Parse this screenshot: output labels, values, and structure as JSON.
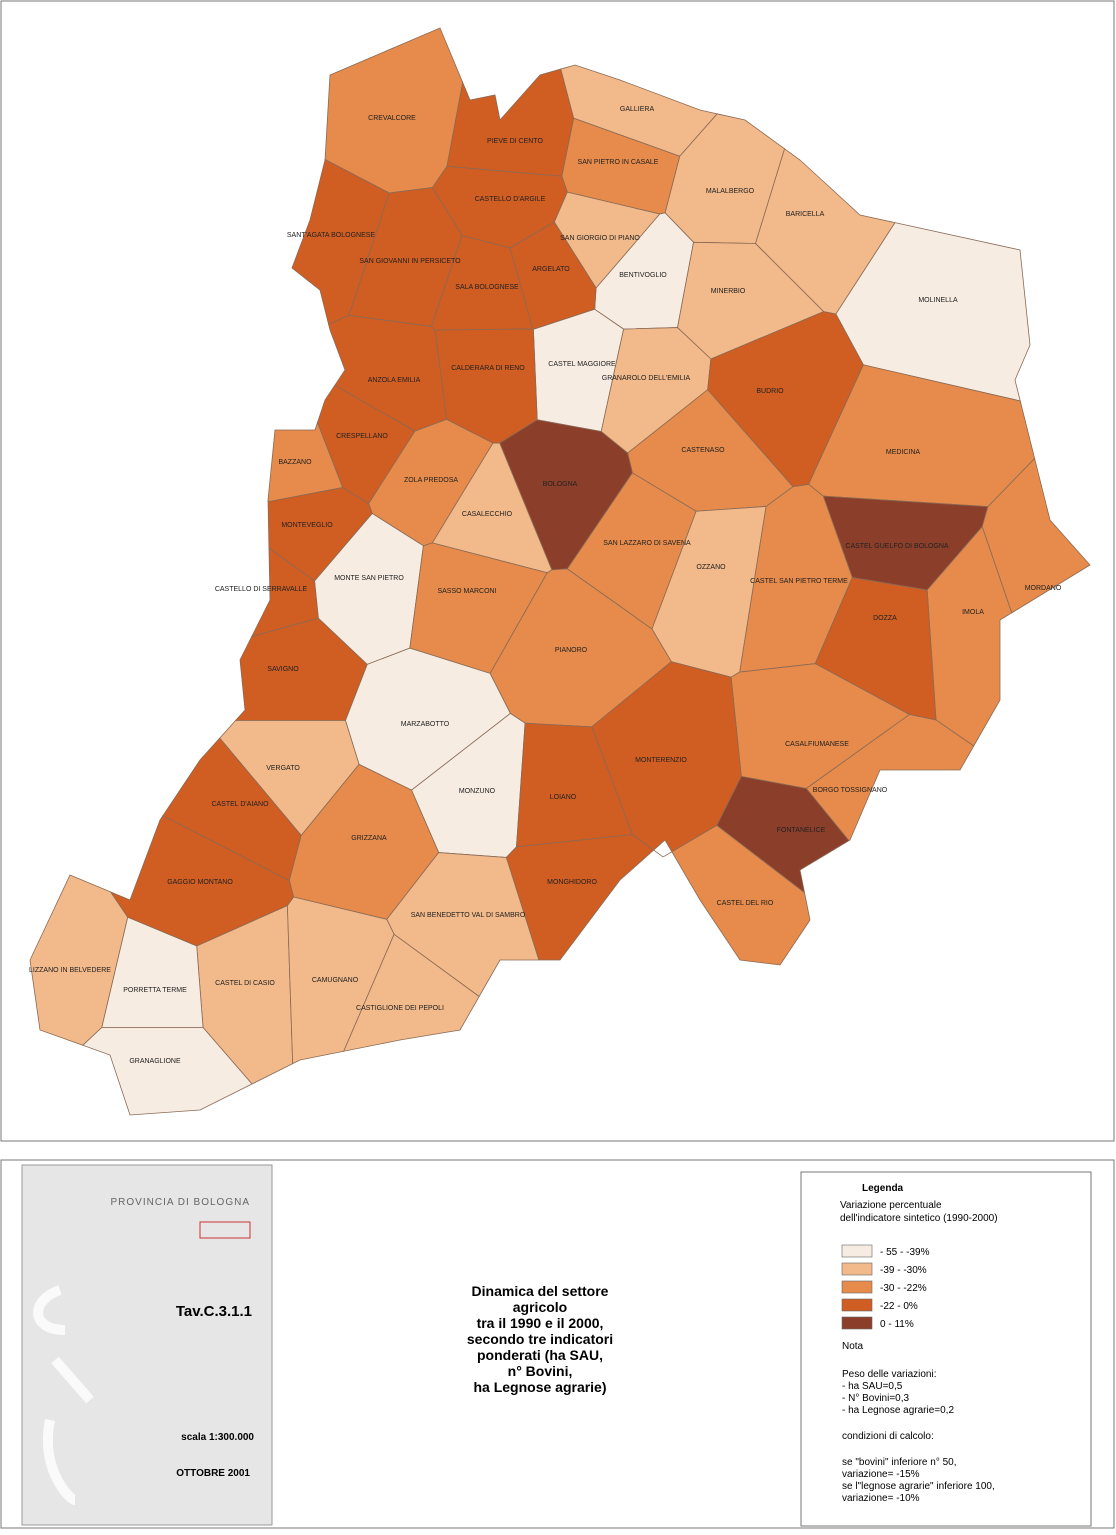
{
  "map": {
    "municipalities": [
      {
        "name": "CREVALCORE",
        "class": 2
      },
      {
        "name": "PIEVE DI CENTO",
        "class": 3
      },
      {
        "name": "GALLIERA",
        "class": 1
      },
      {
        "name": "SAN PIETRO IN CASALE",
        "class": 2
      },
      {
        "name": "MALALBERGO",
        "class": 1
      },
      {
        "name": "BARICELLA",
        "class": 1
      },
      {
        "name": "CASTELLO D'ARGILE",
        "class": 3
      },
      {
        "name": "SANT'AGATA BOLOGNESE",
        "class": 3
      },
      {
        "name": "SAN GIORGIO DI PIANO",
        "class": 1
      },
      {
        "name": "SAN GIOVANNI IN PERSICETO",
        "class": 3
      },
      {
        "name": "BENTIVOGLIO",
        "class": 0
      },
      {
        "name": "ARGELATO",
        "class": 3
      },
      {
        "name": "MOLINELLA",
        "class": 0
      },
      {
        "name": "SALA BOLOGNESE",
        "class": 3
      },
      {
        "name": "MINERBIO",
        "class": 1
      },
      {
        "name": "CASTEL MAGGIORE",
        "class": 0
      },
      {
        "name": "CALDERARA DI RENO",
        "class": 3
      },
      {
        "name": "ANZOLA EMILIA",
        "class": 3
      },
      {
        "name": "GRANAROLO DELL'EMILIA",
        "class": 1
      },
      {
        "name": "BUDRIO",
        "class": 3
      },
      {
        "name": "CRESPELLANO",
        "class": 3
      },
      {
        "name": "BAZZANO",
        "class": 2
      },
      {
        "name": "CASTENASO",
        "class": 2
      },
      {
        "name": "MEDICINA",
        "class": 2
      },
      {
        "name": "ZOLA PREDOSA",
        "class": 2
      },
      {
        "name": "BOLOGNA",
        "class": 4
      },
      {
        "name": "CASALECCHIO",
        "class": 1
      },
      {
        "name": "MONTEVEGLIO",
        "class": 3
      },
      {
        "name": "CASTEL GUELFO DI BOLOGNA",
        "class": 4
      },
      {
        "name": "SAN LAZZARO DI SAVENA",
        "class": 2
      },
      {
        "name": "OZZANO",
        "class": 1
      },
      {
        "name": "MONTE SAN PIETRO",
        "class": 0
      },
      {
        "name": "CASTEL SAN PIETRO TERME",
        "class": 2
      },
      {
        "name": "CASTELLO DI SERRAVALLE",
        "class": 3
      },
      {
        "name": "SASSO MARCONI",
        "class": 2
      },
      {
        "name": "MORDANO",
        "class": 2
      },
      {
        "name": "IMOLA",
        "class": 2
      },
      {
        "name": "DOZZA",
        "class": 3
      },
      {
        "name": "PIANORO",
        "class": 2
      },
      {
        "name": "SAVIGNO",
        "class": 3
      },
      {
        "name": "MARZABOTTO",
        "class": 0
      },
      {
        "name": "CASALFIUMANESE",
        "class": 2
      },
      {
        "name": "MONTERENZIO",
        "class": 3
      },
      {
        "name": "VERGATO",
        "class": 1
      },
      {
        "name": "BORGO TOSSIGNANO",
        "class": 2
      },
      {
        "name": "MONZUNO",
        "class": 0
      },
      {
        "name": "LOIANO",
        "class": 3
      },
      {
        "name": "CASTEL D'AIANO",
        "class": 3
      },
      {
        "name": "FONTANELICE",
        "class": 4
      },
      {
        "name": "GRIZZANA",
        "class": 2
      },
      {
        "name": "GAGGIO MONTANO",
        "class": 3
      },
      {
        "name": "MONGHIDORO",
        "class": 3
      },
      {
        "name": "CASTEL DEL RIO",
        "class": 2
      },
      {
        "name": "SAN BENEDETTO VAL DI SAMBRO",
        "class": 1
      },
      {
        "name": "LIZZANO IN BELVEDERE",
        "class": 1
      },
      {
        "name": "CASTEL DI CASIO",
        "class": 1
      },
      {
        "name": "PORRETTA TERME",
        "class": 0
      },
      {
        "name": "CAMUGNANO",
        "class": 1
      },
      {
        "name": "CASTIGLIONE DEI PEPOLI",
        "class": 1
      },
      {
        "name": "GRANAGLIONE",
        "class": 0
      }
    ]
  },
  "panel": {
    "province": "PROVINCIA DI BOLOGNA",
    "code": "Tav.C.3.1.1",
    "scale": "scala 1:300.000",
    "date": "OTTOBRE 2001"
  },
  "title_lines": [
    "Dinamica del settore",
    "agricolo",
    "tra il 1990 e il 2000,",
    "secondo tre indicatori",
    "ponderati (ha SAU,",
    "n° Bovini,",
    "ha Legnose agrarie)"
  ],
  "legend": {
    "title": "Legenda",
    "subtitle_lines": [
      "Variazione percentuale",
      "dell'indicatore sintetico (1990-2000)"
    ],
    "classes": [
      {
        "label": "- 55 -  -39%",
        "color": "#f6ece2"
      },
      {
        "label": "-39 -  -30%",
        "color": "#f2b98a"
      },
      {
        "label": "-30 -  -22%",
        "color": "#e68b4b"
      },
      {
        "label": "-22 -  0%",
        "color": "#d05d22"
      },
      {
        "label": "0 -  11%",
        "color": "#8b3f2b"
      }
    ],
    "nota": "Nota",
    "notes": [
      [
        "Peso delle variazioni:",
        "- ha SAU=0,5",
        "- N° Bovini=0,3",
        "- ha Legnose agrarie=0,2"
      ],
      [
        "condizioni di calcolo:"
      ],
      [
        "se \"bovini\" inferiore n° 50,",
        "variazione= -15%",
        "se l\"legnose agrarie\" inferiore 100,",
        "variazione= -10%"
      ]
    ]
  }
}
